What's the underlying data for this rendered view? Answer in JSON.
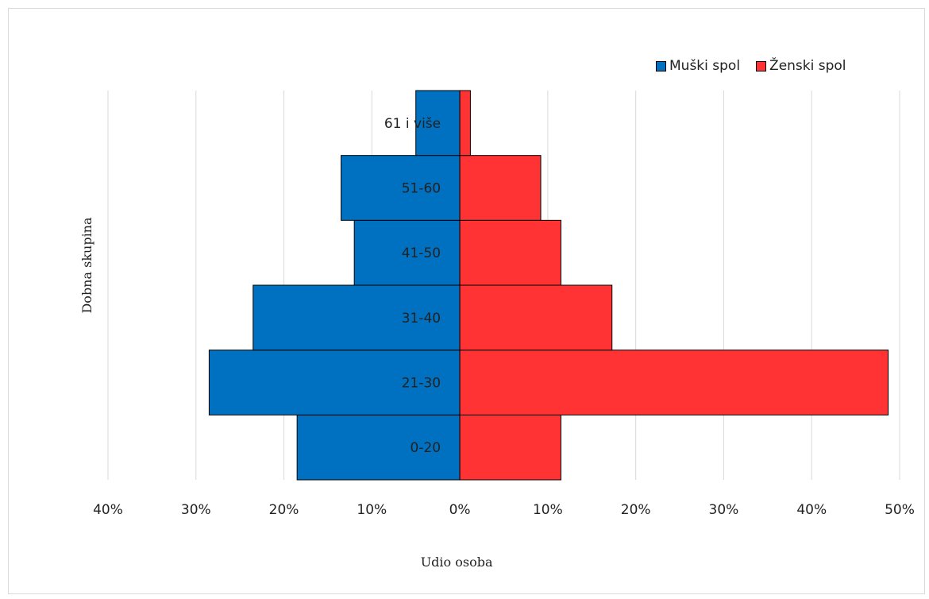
{
  "chart_data": {
    "type": "bar",
    "orientation": "horizontal",
    "subtype": "population-pyramid",
    "categories": [
      "0-20",
      "21-30",
      "31-40",
      "41-50",
      "51-60",
      "61 i više"
    ],
    "series": [
      {
        "name": "Muški spol",
        "color": "#0070c0",
        "values": [
          18.5,
          28.5,
          23.5,
          12.0,
          13.5,
          5.0
        ]
      },
      {
        "name": "Ženski spol",
        "color": "#ff3333",
        "values": [
          11.5,
          48.7,
          17.3,
          11.5,
          9.2,
          1.2
        ]
      }
    ],
    "xlabel": "Udio osoba",
    "ylabel": "Dobna skupina",
    "xlim": [
      -40,
      50
    ],
    "xticks": [
      -40,
      -30,
      -20,
      -10,
      0,
      10,
      20,
      30,
      40,
      50
    ],
    "xtick_labels": [
      "40%",
      "30%",
      "20%",
      "10%",
      "0%",
      "10%",
      "20%",
      "30%",
      "40%",
      "50%"
    ],
    "grid": "vertical",
    "legend_position": "top-right"
  }
}
